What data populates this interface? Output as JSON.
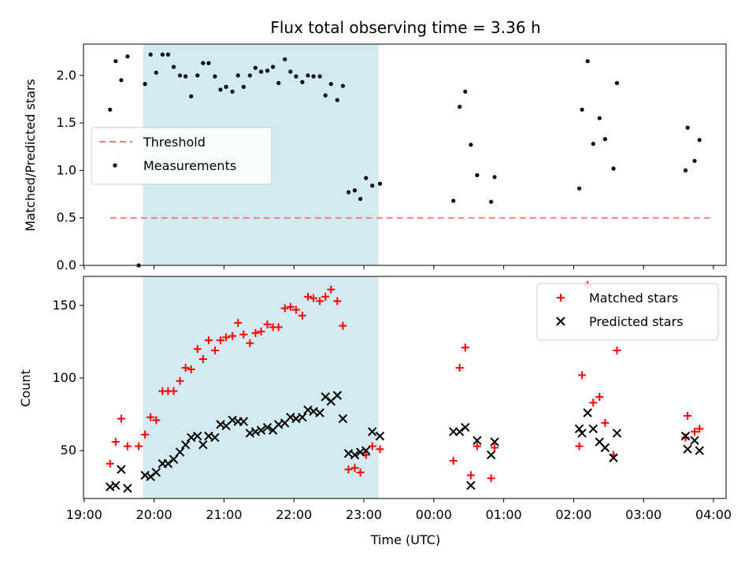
{
  "chart_data": {
    "title": "Flux total observing time = 3.36 h",
    "xlabel": "Time (UTC)",
    "x_tick_labels": [
      "19:00",
      "20:00",
      "21:00",
      "22:00",
      "23:00",
      "00:00",
      "01:00",
      "02:00",
      "03:00",
      "04:00"
    ],
    "x_range_hours": [
      18.99,
      28.18
    ],
    "shaded_interval_hours": [
      19.84,
      23.21
    ],
    "shade_color": "#add8e6",
    "panels": [
      {
        "type": "scatter",
        "ylabel": "Matched/Predicted stars",
        "ylim": [
          0,
          2.33
        ],
        "y_ticks": [
          0.0,
          0.5,
          1.0,
          1.5,
          2.0
        ],
        "y_tick_labels": [
          "0.0",
          "0.5",
          "1.0",
          "1.5",
          "2.0"
        ],
        "legend": {
          "position": "center-left",
          "entries": [
            {
              "label": "Threshold",
              "style": "dashed-line",
              "color": "#f08080"
            },
            {
              "label": "Measurements",
              "style": "dot",
              "color": "#000000"
            }
          ]
        },
        "threshold": {
          "y": 0.5,
          "x_range": [
            19.37,
            28.0
          ],
          "color": "#f08080"
        },
        "series": [
          {
            "name": "Measurements",
            "marker": "dot",
            "color": "#000000",
            "points": [
              [
                19.37,
                1.64
              ],
              [
                19.45,
                2.15
              ],
              [
                19.53,
                1.95
              ],
              [
                19.62,
                2.2
              ],
              [
                19.78,
                0.0
              ],
              [
                19.87,
                1.91
              ],
              [
                19.95,
                2.22
              ],
              [
                20.03,
                2.03
              ],
              [
                20.12,
                2.22
              ],
              [
                20.2,
                2.22
              ],
              [
                20.28,
                2.09
              ],
              [
                20.37,
                2.0
              ],
              [
                20.45,
                1.99
              ],
              [
                20.53,
                1.78
              ],
              [
                20.62,
                2.0
              ],
              [
                20.7,
                2.13
              ],
              [
                20.78,
                2.13
              ],
              [
                20.87,
                1.99
              ],
              [
                20.95,
                1.85
              ],
              [
                21.03,
                1.88
              ],
              [
                21.12,
                1.83
              ],
              [
                21.2,
                2.0
              ],
              [
                21.28,
                1.88
              ],
              [
                21.37,
                2.0
              ],
              [
                21.45,
                2.08
              ],
              [
                21.53,
                2.04
              ],
              [
                21.62,
                2.05
              ],
              [
                21.7,
                2.09
              ],
              [
                21.78,
                1.92
              ],
              [
                21.87,
                2.17
              ],
              [
                21.95,
                2.04
              ],
              [
                22.03,
                1.99
              ],
              [
                22.12,
                1.93
              ],
              [
                22.2,
                2.0
              ],
              [
                22.28,
                1.99
              ],
              [
                22.37,
                1.99
              ],
              [
                22.45,
                1.79
              ],
              [
                22.53,
                1.91
              ],
              [
                22.62,
                1.74
              ],
              [
                22.7,
                1.89
              ],
              [
                22.78,
                0.77
              ],
              [
                22.87,
                0.79
              ],
              [
                22.95,
                0.7
              ],
              [
                23.03,
                0.92
              ],
              [
                23.12,
                0.84
              ],
              [
                23.23,
                0.86
              ],
              [
                24.28,
                0.68
              ],
              [
                24.37,
                1.67
              ],
              [
                24.45,
                1.83
              ],
              [
                24.53,
                1.27
              ],
              [
                24.62,
                0.95
              ],
              [
                24.82,
                0.67
              ],
              [
                24.87,
                0.93
              ],
              [
                26.08,
                0.81
              ],
              [
                26.12,
                1.64
              ],
              [
                26.2,
                2.15
              ],
              [
                26.28,
                1.28
              ],
              [
                26.37,
                1.55
              ],
              [
                26.45,
                1.33
              ],
              [
                26.57,
                1.02
              ],
              [
                26.62,
                1.92
              ],
              [
                27.6,
                1.0
              ],
              [
                27.63,
                1.45
              ],
              [
                27.73,
                1.1
              ],
              [
                27.8,
                1.32
              ]
            ]
          }
        ]
      },
      {
        "type": "scatter",
        "ylabel": "Count",
        "ylim": [
          17,
          170
        ],
        "y_ticks": [
          50,
          100,
          150
        ],
        "y_tick_labels": [
          "50",
          "100",
          "150"
        ],
        "legend": {
          "position": "top-right",
          "entries": [
            {
              "label": "Matched stars",
              "style": "plus",
              "color": "#ff0000"
            },
            {
              "label": "Predicted stars",
              "style": "x",
              "color": "#000000"
            }
          ]
        },
        "series": [
          {
            "name": "Matched stars",
            "marker": "plus",
            "color": "#ff0000",
            "points": [
              [
                19.37,
                41
              ],
              [
                19.45,
                56
              ],
              [
                19.53,
                72
              ],
              [
                19.62,
                53
              ],
              [
                19.78,
                53
              ],
              [
                19.87,
                61
              ],
              [
                19.95,
                73
              ],
              [
                20.03,
                71
              ],
              [
                20.12,
                91
              ],
              [
                20.2,
                91
              ],
              [
                20.28,
                91
              ],
              [
                20.37,
                98
              ],
              [
                20.45,
                107
              ],
              [
                20.53,
                106
              ],
              [
                20.62,
                120
              ],
              [
                20.7,
                113
              ],
              [
                20.78,
                126
              ],
              [
                20.87,
                119
              ],
              [
                20.95,
                126
              ],
              [
                21.03,
                128
              ],
              [
                21.12,
                129
              ],
              [
                21.2,
                138
              ],
              [
                21.28,
                130
              ],
              [
                21.37,
                124
              ],
              [
                21.45,
                131
              ],
              [
                21.53,
                132
              ],
              [
                21.62,
                137
              ],
              [
                21.7,
                135
              ],
              [
                21.78,
                135
              ],
              [
                21.87,
                148
              ],
              [
                21.95,
                149
              ],
              [
                22.03,
                147
              ],
              [
                22.12,
                143
              ],
              [
                22.2,
                156
              ],
              [
                22.28,
                155
              ],
              [
                22.37,
                153
              ],
              [
                22.45,
                156
              ],
              [
                22.53,
                161
              ],
              [
                22.62,
                153
              ],
              [
                22.7,
                136
              ],
              [
                22.78,
                37
              ],
              [
                22.87,
                38
              ],
              [
                22.95,
                35
              ],
              [
                23.03,
                47
              ],
              [
                23.12,
                53
              ],
              [
                23.23,
                51
              ],
              [
                24.28,
                43
              ],
              [
                24.37,
                107
              ],
              [
                24.45,
                121
              ],
              [
                24.53,
                33
              ],
              [
                24.62,
                53
              ],
              [
                24.82,
                31
              ],
              [
                24.87,
                52
              ],
              [
                26.08,
                53
              ],
              [
                26.12,
                102
              ],
              [
                26.2,
                164
              ],
              [
                26.28,
                83
              ],
              [
                26.37,
                87
              ],
              [
                26.45,
                69
              ],
              [
                26.57,
                47
              ],
              [
                26.62,
                119
              ],
              [
                27.6,
                59
              ],
              [
                27.63,
                74
              ],
              [
                27.73,
                63
              ],
              [
                27.8,
                65
              ]
            ]
          },
          {
            "name": "Predicted stars",
            "marker": "x",
            "color": "#000000",
            "points": [
              [
                19.37,
                25
              ],
              [
                19.45,
                26
              ],
              [
                19.53,
                37
              ],
              [
                19.62,
                24
              ],
              [
                19.87,
                33
              ],
              [
                19.95,
                32
              ],
              [
                20.03,
                35
              ],
              [
                20.12,
                41
              ],
              [
                20.2,
                41
              ],
              [
                20.28,
                44
              ],
              [
                20.37,
                49
              ],
              [
                20.45,
                54
              ],
              [
                20.53,
                59
              ],
              [
                20.62,
                60
              ],
              [
                20.7,
                54
              ],
              [
                20.78,
                60
              ],
              [
                20.87,
                59
              ],
              [
                20.95,
                68
              ],
              [
                21.03,
                67
              ],
              [
                21.12,
                71
              ],
              [
                21.2,
                70
              ],
              [
                21.28,
                70
              ],
              [
                21.37,
                62
              ],
              [
                21.45,
                63
              ],
              [
                21.53,
                64
              ],
              [
                21.62,
                66
              ],
              [
                21.7,
                64
              ],
              [
                21.78,
                68
              ],
              [
                21.87,
                69
              ],
              [
                21.95,
                73
              ],
              [
                22.03,
                72
              ],
              [
                22.12,
                73
              ],
              [
                22.2,
                78
              ],
              [
                22.28,
                77
              ],
              [
                22.37,
                76
              ],
              [
                22.45,
                87
              ],
              [
                22.53,
                84
              ],
              [
                22.62,
                88
              ],
              [
                22.7,
                72
              ],
              [
                22.78,
                48
              ],
              [
                22.87,
                47
              ],
              [
                22.95,
                49
              ],
              [
                23.03,
                50
              ],
              [
                23.12,
                63
              ],
              [
                23.23,
                60
              ],
              [
                24.28,
                63
              ],
              [
                24.37,
                63
              ],
              [
                24.45,
                66
              ],
              [
                24.53,
                26
              ],
              [
                24.62,
                57
              ],
              [
                24.82,
                47
              ],
              [
                24.87,
                56
              ],
              [
                26.08,
                65
              ],
              [
                26.12,
                62
              ],
              [
                26.2,
                76
              ],
              [
                26.28,
                65
              ],
              [
                26.37,
                56
              ],
              [
                26.45,
                52
              ],
              [
                26.57,
                45
              ],
              [
                26.62,
                62
              ],
              [
                27.6,
                60
              ],
              [
                27.63,
                51
              ],
              [
                27.73,
                57
              ],
              [
                27.8,
                50
              ]
            ]
          }
        ]
      }
    ]
  }
}
